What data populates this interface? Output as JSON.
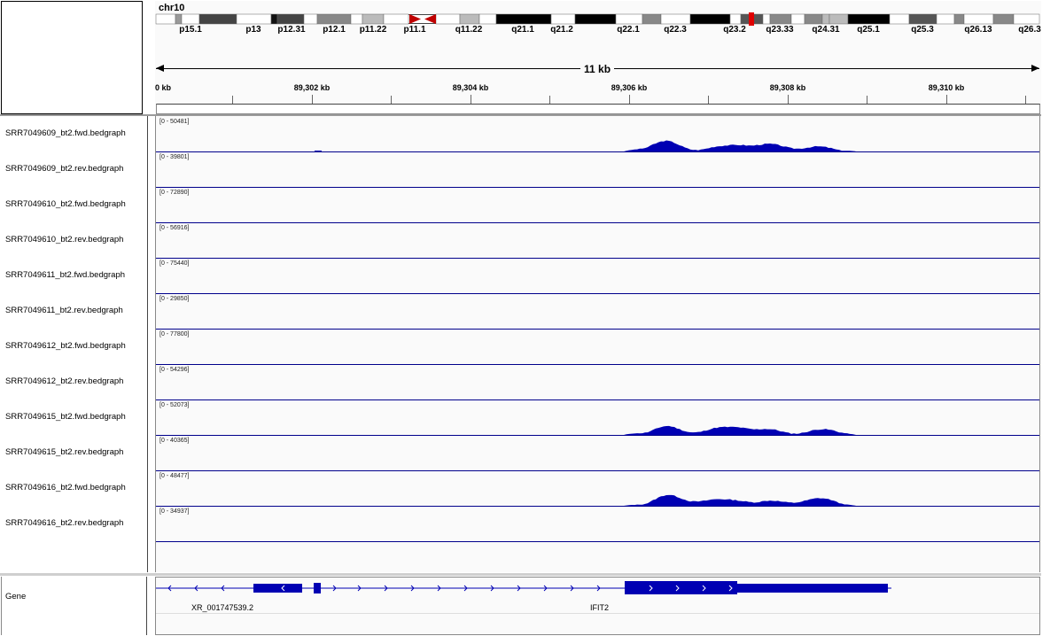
{
  "header": {
    "chromosome": "chr10",
    "span_label": "11 kb",
    "bands": [
      "p15.1",
      "p13",
      "p12.31",
      "p12.1",
      "p11.22",
      "p11.1",
      "q11.22",
      "q21.1",
      "q21.2",
      "q22.1",
      "q22.3",
      "q23.2",
      "q23.33",
      "q24.31",
      "q25.1",
      "q25.3",
      "q26.13",
      "q26.3"
    ],
    "ruler_ticks": [
      "0 kb",
      "89,302 kb",
      "89,304 kb",
      "89,306 kb",
      "89,308 kb",
      "89,310 kb"
    ]
  },
  "tracks": [
    {
      "name": "SRR7049609_bt2.fwd.bedgraph",
      "range": "[0 - 50481]",
      "has_signal": true
    },
    {
      "name": "SRR7049609_bt2.rev.bedgraph",
      "range": "[0 - 39801]",
      "has_signal": false
    },
    {
      "name": "SRR7049610_bt2.fwd.bedgraph",
      "range": "[0 - 72890]",
      "has_signal": false
    },
    {
      "name": "SRR7049610_bt2.rev.bedgraph",
      "range": "[0 - 56916]",
      "has_signal": false
    },
    {
      "name": "SRR7049611_bt2.fwd.bedgraph",
      "range": "[0 - 75440]",
      "has_signal": false
    },
    {
      "name": "SRR7049611_bt2.rev.bedgraph",
      "range": "[0 - 29850]",
      "has_signal": false
    },
    {
      "name": "SRR7049612_bt2.fwd.bedgraph",
      "range": "[0 - 77800]",
      "has_signal": false
    },
    {
      "name": "SRR7049612_bt2.rev.bedgraph",
      "range": "[0 - 54296]",
      "has_signal": false
    },
    {
      "name": "SRR7049615_bt2.fwd.bedgraph",
      "range": "[0 - 52073]",
      "has_signal": true
    },
    {
      "name": "SRR7049615_bt2.rev.bedgraph",
      "range": "[0 - 40365]",
      "has_signal": false
    },
    {
      "name": "SRR7049616_bt2.fwd.bedgraph",
      "range": "[0 - 48477]",
      "has_signal": true
    },
    {
      "name": "SRR7049616_bt2.rev.bedgraph",
      "range": "[0 - 34937]",
      "has_signal": false
    }
  ],
  "gene_track": {
    "label": "Gene",
    "features": [
      "XR_001747539.2",
      "IFIT2"
    ]
  },
  "colors": {
    "signal": "#0000b3",
    "centromere": "#c00000",
    "current_region": "#e00000"
  }
}
